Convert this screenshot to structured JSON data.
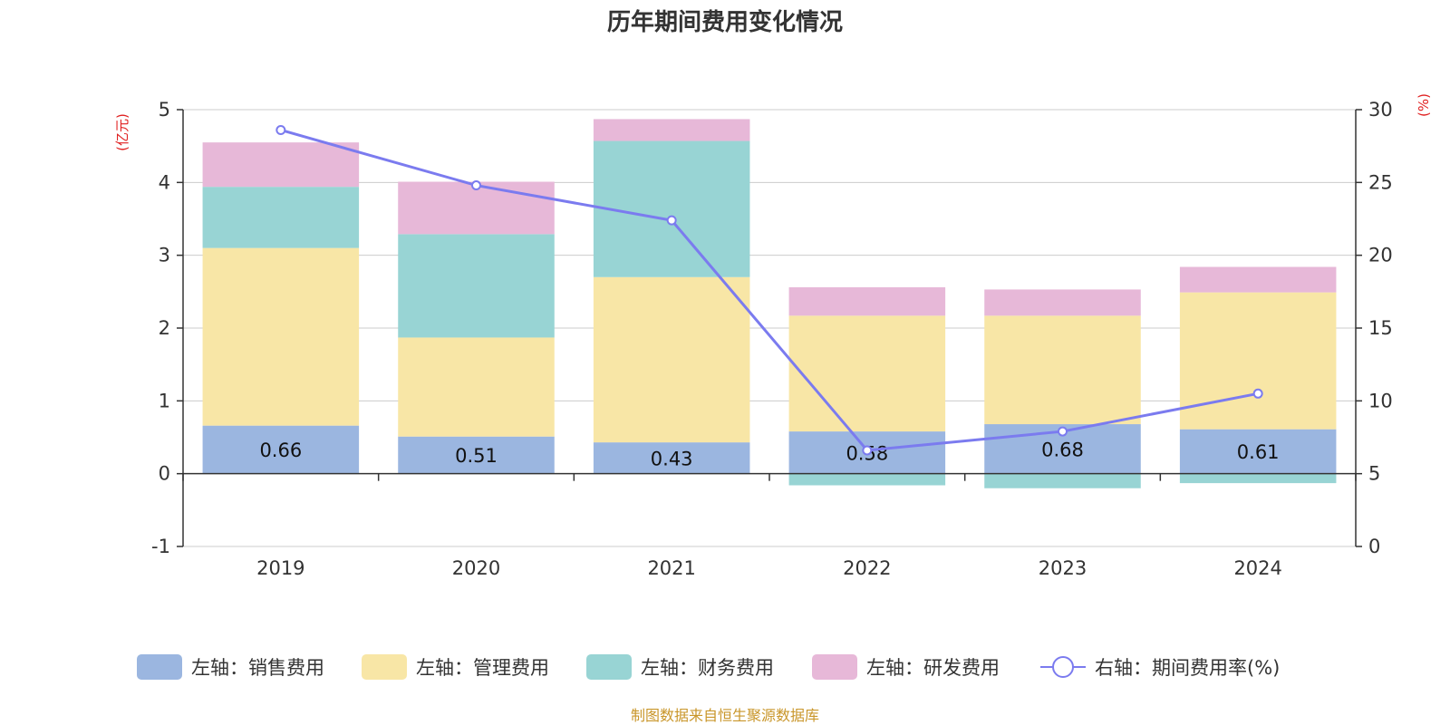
{
  "colors": {
    "sales": "#9bb6e0",
    "admin": "#f8e6a6",
    "finance": "#98d4d4",
    "rd": "#e7b8d8",
    "rate": "#7b7bef",
    "unit": "#e02020",
    "source": "#c9962a",
    "grid": "#cccccc",
    "axis": "#333333"
  },
  "chart_data": {
    "type": "bar",
    "stacked": true,
    "title": "历年期间费用变化情况",
    "categories": [
      "2019",
      "2020",
      "2021",
      "2022",
      "2023",
      "2024"
    ],
    "left_axis": {
      "unit": "(亿元)",
      "ylim": [
        -1,
        5
      ],
      "ticks": [
        "-1",
        "0",
        "1",
        "2",
        "3",
        "4",
        "5"
      ]
    },
    "right_axis": {
      "unit": "(%)",
      "ylim": [
        0,
        30
      ],
      "ticks": [
        "0",
        "5",
        "10",
        "15",
        "20",
        "25",
        "30"
      ]
    },
    "series": [
      {
        "key": "sales",
        "name": "左轴：销售费用",
        "axis": "left",
        "type": "bar",
        "values": [
          0.66,
          0.51,
          0.43,
          0.58,
          0.68,
          0.61
        ],
        "labels": [
          "0.66",
          "0.51",
          "0.43",
          "0.58",
          "0.68",
          "0.61"
        ]
      },
      {
        "key": "admin",
        "name": "左轴：管理费用",
        "axis": "left",
        "type": "bar",
        "values": [
          2.44,
          1.36,
          2.27,
          1.59,
          1.49,
          1.88
        ]
      },
      {
        "key": "finance",
        "name": "左轴：财务费用",
        "axis": "left",
        "type": "bar",
        "values": [
          0.84,
          1.42,
          1.87,
          -0.16,
          -0.2,
          -0.13
        ]
      },
      {
        "key": "rd",
        "name": "左轴：研发费用",
        "axis": "left",
        "type": "bar",
        "values": [
          0.61,
          0.72,
          0.3,
          0.39,
          0.36,
          0.35
        ]
      },
      {
        "key": "rate",
        "name": "右轴：期间费用率(%)",
        "axis": "right",
        "type": "line",
        "values": [
          28.6,
          24.8,
          22.4,
          6.6,
          7.9,
          10.5
        ]
      }
    ],
    "grid": true,
    "legend_position": "bottom"
  },
  "source": "制图数据来自恒生聚源数据库"
}
